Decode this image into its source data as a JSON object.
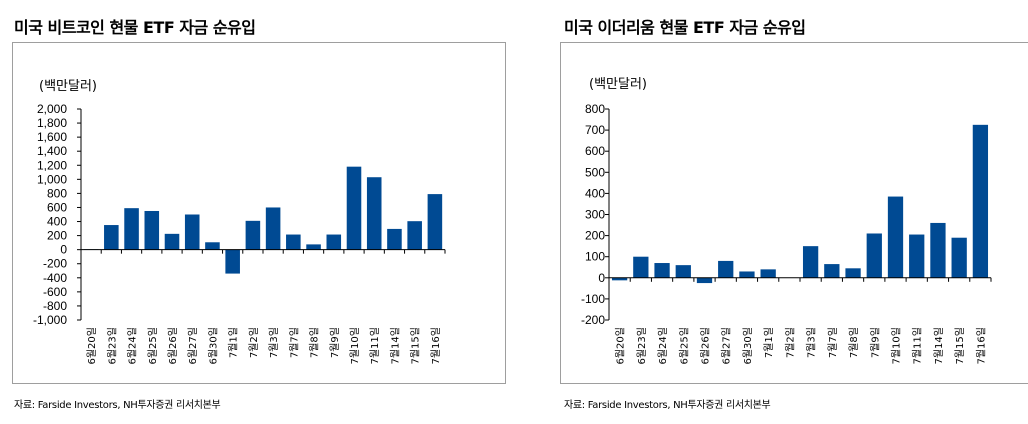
{
  "left": {
    "title": "미국 비트코인 현물 ETF 자금 순유입",
    "unit": "(백만달러)",
    "source": "자료: Farside Investors, NH투자증권 리서치본부"
  },
  "right": {
    "title": "미국 이더리움 현물 ETF 자금 순유입",
    "unit": "(백만달러)",
    "source": "자료: Farside Investors, NH투자증권 리서치본부"
  },
  "colors": {
    "bar": "#004a93",
    "axis": "#000000",
    "frame": "#9e9e9e"
  },
  "chart_data": [
    {
      "type": "bar",
      "title": "미국 비트코인 현물 ETF 자금 순유입",
      "ylabel": "(백만달러)",
      "ylim": [
        -1000,
        2000
      ],
      "yticks": [
        2000,
        1800,
        1600,
        1400,
        1200,
        1000,
        800,
        600,
        400,
        200,
        0,
        -200,
        -400,
        -600,
        -800,
        -1000
      ],
      "ytick_labels": [
        "2,000",
        "1,800",
        "1,600",
        "1,400",
        "1,200",
        "1,000",
        "800",
        "600",
        "400",
        "200",
        "0",
        "-200",
        "-400",
        "-600",
        "-800",
        "-1,000"
      ],
      "categories": [
        "6월20일",
        "6월23일",
        "6월24일",
        "6월25일",
        "6월26일",
        "6월27일",
        "6월30일",
        "7월1일",
        "7월2일",
        "7월3일",
        "7월7일",
        "7월8일",
        "7월9일",
        "7월10일",
        "7월11일",
        "7월14일",
        "7월15일",
        "7월16일"
      ],
      "values": [
        5,
        350,
        590,
        550,
        225,
        500,
        105,
        -340,
        410,
        600,
        215,
        75,
        215,
        1180,
        1030,
        295,
        405,
        790
      ],
      "grid": false
    },
    {
      "type": "bar",
      "title": "미국 이더리움 현물 ETF 자금 순유입",
      "ylabel": "(백만달러)",
      "ylim": [
        -200,
        800
      ],
      "yticks": [
        800,
        700,
        600,
        500,
        400,
        300,
        200,
        100,
        0,
        -100,
        -200
      ],
      "ytick_labels": [
        "800",
        "700",
        "600",
        "500",
        "400",
        "300",
        "200",
        "100",
        "0",
        "-100",
        "-200"
      ],
      "categories": [
        "6월20일",
        "6월23일",
        "6월24일",
        "6월25일",
        "6월26일",
        "6월27일",
        "6월30일",
        "7월1일",
        "7월2일",
        "7월3일",
        "7월7일",
        "7월8일",
        "7월9일",
        "7월10일",
        "7월11일",
        "7월14일",
        "7월15일",
        "7월16일"
      ],
      "values": [
        -12,
        100,
        70,
        60,
        -25,
        80,
        30,
        40,
        0,
        150,
        65,
        45,
        210,
        385,
        205,
        260,
        190,
        725
      ],
      "grid": false
    }
  ]
}
